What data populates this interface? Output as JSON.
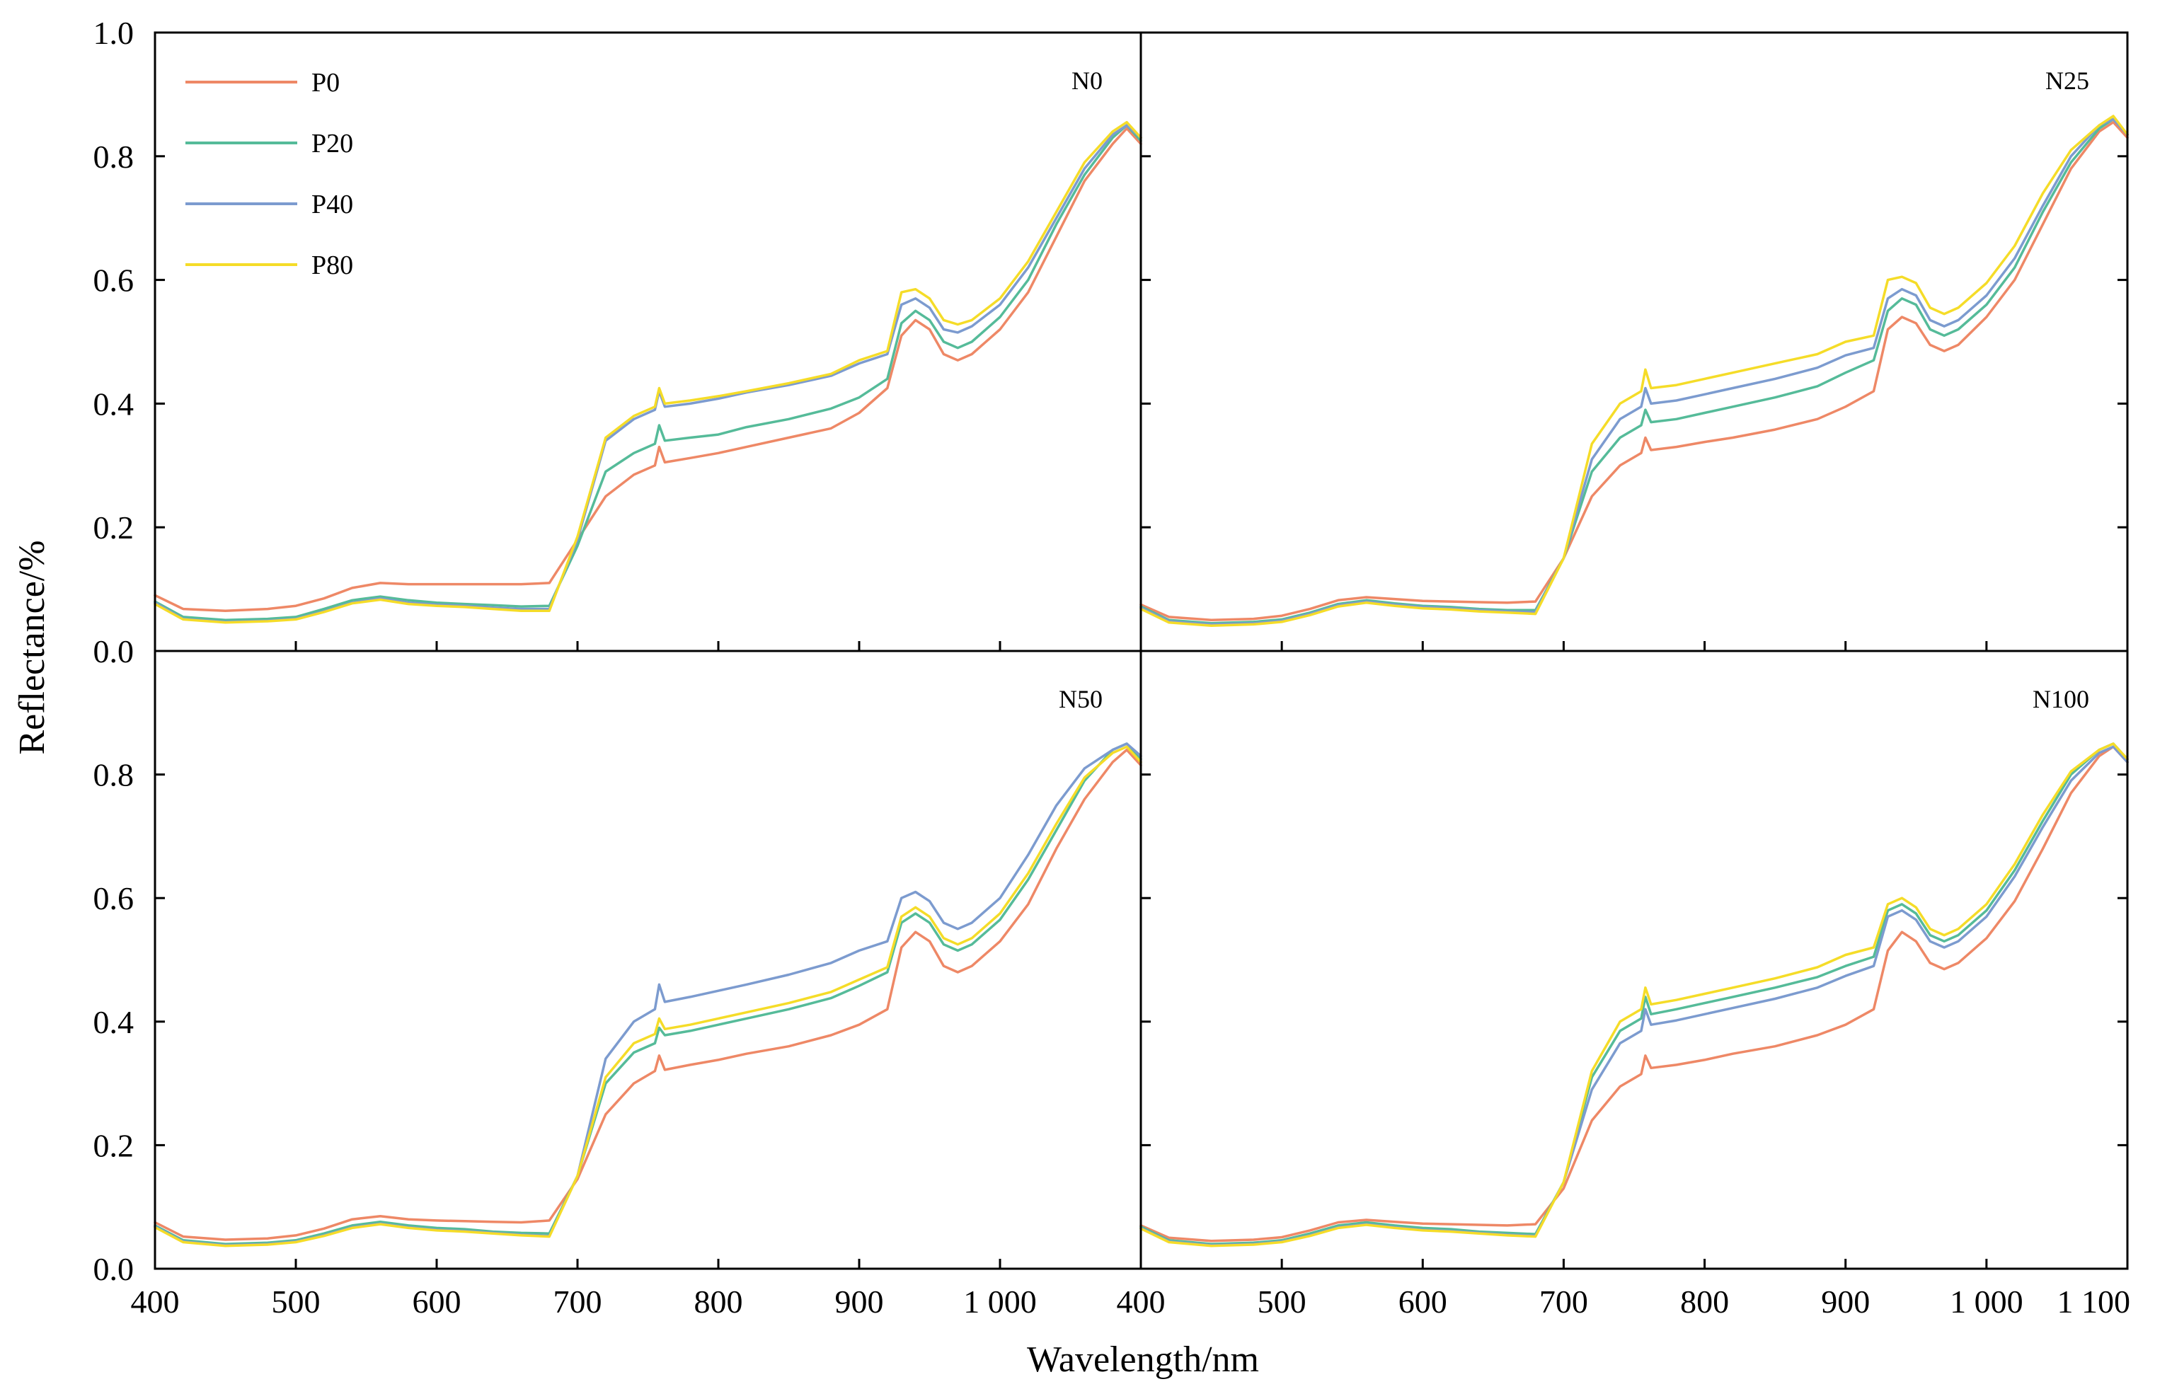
{
  "chart_data": {
    "type": "line",
    "layout": "2x2 panels, shared axes",
    "xlabel": "Wavelength/nm",
    "ylabel": "Reflectance/%",
    "xlim": [
      400,
      1100
    ],
    "ylim": [
      0.0,
      1.0
    ],
    "x_ticks": [
      400,
      500,
      600,
      700,
      800,
      900,
      1000,
      1100
    ],
    "x_tick_labels_left": [
      "400",
      "500",
      "600",
      "700",
      "800",
      "900",
      "1 000",
      ""
    ],
    "x_tick_labels_right": [
      "400",
      "500",
      "600",
      "700",
      "800",
      "900",
      "1 000",
      "1 100"
    ],
    "y_ticks": [
      0.0,
      0.2,
      0.4,
      0.6,
      0.8,
      1.0
    ],
    "y_tick_labels_top": [
      "0.0",
      "0.2",
      "0.4",
      "0.6",
      "0.8",
      "1.0"
    ],
    "y_tick_labels_bottom": [
      "0.0",
      "0.2",
      "0.4",
      "0.6",
      "0.8",
      ""
    ],
    "grid": false,
    "legend": {
      "placement": "top-left of first panel",
      "entries": [
        {
          "name": "P0",
          "color": "#EE8866"
        },
        {
          "name": "P20",
          "color": "#55BB99"
        },
        {
          "name": "P40",
          "color": "#7C9BCF"
        },
        {
          "name": "P80",
          "color": "#F5DC28"
        }
      ]
    },
    "x": [
      400,
      420,
      450,
      480,
      500,
      520,
      540,
      560,
      580,
      600,
      620,
      640,
      660,
      680,
      700,
      720,
      740,
      755,
      758,
      762,
      780,
      800,
      820,
      850,
      880,
      900,
      920,
      930,
      940,
      950,
      960,
      970,
      980,
      1000,
      1020,
      1040,
      1060,
      1080,
      1090,
      1100
    ],
    "panels": [
      {
        "label": "N0",
        "series": [
          {
            "name": "P0",
            "values": [
              0.09,
              0.068,
              0.065,
              0.068,
              0.073,
              0.085,
              0.102,
              0.11,
              0.108,
              0.108,
              0.108,
              0.108,
              0.108,
              0.11,
              0.18,
              0.25,
              0.285,
              0.3,
              0.33,
              0.305,
              0.312,
              0.32,
              0.33,
              0.345,
              0.36,
              0.385,
              0.425,
              0.51,
              0.535,
              0.52,
              0.48,
              0.47,
              0.48,
              0.52,
              0.58,
              0.67,
              0.76,
              0.82,
              0.845,
              0.82
            ]
          },
          {
            "name": "P20",
            "values": [
              0.08,
              0.055,
              0.05,
              0.052,
              0.055,
              0.068,
              0.082,
              0.088,
              0.082,
              0.078,
              0.076,
              0.074,
              0.072,
              0.073,
              0.17,
              0.29,
              0.32,
              0.335,
              0.365,
              0.34,
              0.345,
              0.35,
              0.362,
              0.375,
              0.392,
              0.41,
              0.44,
              0.53,
              0.55,
              0.535,
              0.5,
              0.49,
              0.5,
              0.54,
              0.6,
              0.69,
              0.77,
              0.83,
              0.85,
              0.825
            ]
          },
          {
            "name": "P40",
            "values": [
              0.078,
              0.052,
              0.047,
              0.049,
              0.052,
              0.064,
              0.078,
              0.085,
              0.078,
              0.075,
              0.073,
              0.07,
              0.068,
              0.068,
              0.18,
              0.34,
              0.375,
              0.39,
              0.42,
              0.395,
              0.4,
              0.408,
              0.418,
              0.43,
              0.445,
              0.465,
              0.48,
              0.56,
              0.57,
              0.555,
              0.52,
              0.515,
              0.525,
              0.56,
              0.62,
              0.7,
              0.78,
              0.835,
              0.85,
              0.83
            ]
          },
          {
            "name": "P80",
            "values": [
              0.076,
              0.051,
              0.046,
              0.048,
              0.051,
              0.063,
              0.077,
              0.083,
              0.076,
              0.073,
              0.071,
              0.068,
              0.065,
              0.065,
              0.185,
              0.345,
              0.38,
              0.395,
              0.425,
              0.4,
              0.405,
              0.412,
              0.42,
              0.433,
              0.448,
              0.47,
              0.485,
              0.58,
              0.585,
              0.57,
              0.535,
              0.528,
              0.535,
              0.57,
              0.63,
              0.71,
              0.79,
              0.84,
              0.855,
              0.83
            ]
          }
        ]
      },
      {
        "label": "N25",
        "series": [
          {
            "name": "P0",
            "values": [
              0.075,
              0.055,
              0.05,
              0.052,
              0.057,
              0.068,
              0.082,
              0.087,
              0.084,
              0.081,
              0.08,
              0.079,
              0.078,
              0.08,
              0.15,
              0.25,
              0.3,
              0.32,
              0.345,
              0.325,
              0.33,
              0.338,
              0.345,
              0.358,
              0.375,
              0.395,
              0.42,
              0.52,
              0.54,
              0.53,
              0.495,
              0.485,
              0.495,
              0.54,
              0.6,
              0.69,
              0.78,
              0.84,
              0.855,
              0.83
            ]
          },
          {
            "name": "P20",
            "values": [
              0.072,
              0.05,
              0.045,
              0.047,
              0.051,
              0.062,
              0.076,
              0.082,
              0.077,
              0.073,
              0.071,
              0.068,
              0.066,
              0.066,
              0.15,
              0.29,
              0.345,
              0.365,
              0.39,
              0.37,
              0.375,
              0.385,
              0.395,
              0.41,
              0.428,
              0.45,
              0.47,
              0.55,
              0.57,
              0.56,
              0.52,
              0.51,
              0.52,
              0.56,
              0.62,
              0.71,
              0.79,
              0.845,
              0.86,
              0.835
            ]
          },
          {
            "name": "P40",
            "values": [
              0.07,
              0.048,
              0.043,
              0.045,
              0.049,
              0.06,
              0.074,
              0.08,
              0.075,
              0.071,
              0.069,
              0.066,
              0.064,
              0.063,
              0.15,
              0.31,
              0.375,
              0.395,
              0.425,
              0.4,
              0.405,
              0.415,
              0.425,
              0.44,
              0.458,
              0.478,
              0.49,
              0.57,
              0.585,
              0.575,
              0.535,
              0.525,
              0.535,
              0.575,
              0.635,
              0.72,
              0.8,
              0.85,
              0.86,
              0.835
            ]
          },
          {
            "name": "P80",
            "values": [
              0.068,
              0.046,
              0.041,
              0.043,
              0.047,
              0.058,
              0.072,
              0.078,
              0.073,
              0.069,
              0.067,
              0.064,
              0.062,
              0.06,
              0.15,
              0.335,
              0.4,
              0.42,
              0.455,
              0.425,
              0.43,
              0.44,
              0.45,
              0.465,
              0.48,
              0.5,
              0.51,
              0.6,
              0.605,
              0.595,
              0.555,
              0.545,
              0.555,
              0.595,
              0.655,
              0.74,
              0.81,
              0.85,
              0.865,
              0.835
            ]
          }
        ]
      },
      {
        "label": "N50",
        "series": [
          {
            "name": "P0",
            "values": [
              0.075,
              0.052,
              0.047,
              0.049,
              0.054,
              0.065,
              0.08,
              0.085,
              0.08,
              0.078,
              0.077,
              0.076,
              0.075,
              0.078,
              0.145,
              0.25,
              0.3,
              0.32,
              0.345,
              0.322,
              0.33,
              0.338,
              0.348,
              0.36,
              0.378,
              0.395,
              0.42,
              0.52,
              0.545,
              0.53,
              0.49,
              0.48,
              0.49,
              0.53,
              0.59,
              0.68,
              0.76,
              0.82,
              0.84,
              0.815
            ]
          },
          {
            "name": "P20",
            "values": [
              0.07,
              0.046,
              0.04,
              0.042,
              0.046,
              0.057,
              0.07,
              0.076,
              0.07,
              0.066,
              0.064,
              0.06,
              0.058,
              0.057,
              0.15,
              0.3,
              0.35,
              0.365,
              0.39,
              0.378,
              0.385,
              0.395,
              0.405,
              0.42,
              0.438,
              0.458,
              0.48,
              0.56,
              0.575,
              0.56,
              0.525,
              0.515,
              0.525,
              0.565,
              0.63,
              0.71,
              0.79,
              0.84,
              0.85,
              0.825
            ]
          },
          {
            "name": "P40",
            "values": [
              0.068,
              0.044,
              0.038,
              0.04,
              0.044,
              0.054,
              0.067,
              0.073,
              0.067,
              0.063,
              0.061,
              0.058,
              0.055,
              0.053,
              0.15,
              0.34,
              0.4,
              0.42,
              0.46,
              0.432,
              0.44,
              0.45,
              0.46,
              0.476,
              0.495,
              0.515,
              0.53,
              0.6,
              0.61,
              0.595,
              0.56,
              0.55,
              0.56,
              0.6,
              0.67,
              0.75,
              0.81,
              0.84,
              0.85,
              0.83
            ]
          },
          {
            "name": "P80",
            "values": [
              0.067,
              0.043,
              0.037,
              0.039,
              0.043,
              0.053,
              0.066,
              0.072,
              0.066,
              0.062,
              0.06,
              0.057,
              0.054,
              0.052,
              0.15,
              0.31,
              0.365,
              0.38,
              0.405,
              0.388,
              0.395,
              0.405,
              0.415,
              0.43,
              0.448,
              0.468,
              0.488,
              0.57,
              0.585,
              0.57,
              0.535,
              0.525,
              0.535,
              0.575,
              0.64,
              0.72,
              0.795,
              0.835,
              0.845,
              0.82
            ]
          }
        ]
      },
      {
        "label": "N100",
        "series": [
          {
            "name": "P0",
            "values": [
              0.07,
              0.05,
              0.045,
              0.047,
              0.051,
              0.062,
              0.075,
              0.079,
              0.076,
              0.073,
              0.072,
              0.071,
              0.07,
              0.072,
              0.13,
              0.24,
              0.295,
              0.315,
              0.345,
              0.325,
              0.33,
              0.338,
              0.348,
              0.36,
              0.378,
              0.395,
              0.42,
              0.515,
              0.545,
              0.53,
              0.495,
              0.485,
              0.495,
              0.535,
              0.595,
              0.68,
              0.77,
              0.83,
              0.845,
              0.82
            ]
          },
          {
            "name": "P20",
            "values": [
              0.068,
              0.046,
              0.04,
              0.042,
              0.046,
              0.057,
              0.07,
              0.075,
              0.07,
              0.066,
              0.064,
              0.06,
              0.058,
              0.056,
              0.14,
              0.31,
              0.385,
              0.405,
              0.44,
              0.412,
              0.42,
              0.43,
              0.44,
              0.455,
              0.472,
              0.49,
              0.505,
              0.58,
              0.59,
              0.575,
              0.54,
              0.53,
              0.54,
              0.58,
              0.645,
              0.725,
              0.8,
              0.84,
              0.85,
              0.825
            ]
          },
          {
            "name": "P40",
            "values": [
              0.066,
              0.044,
              0.038,
              0.04,
              0.044,
              0.054,
              0.067,
              0.072,
              0.067,
              0.063,
              0.061,
              0.058,
              0.055,
              0.053,
              0.14,
              0.29,
              0.365,
              0.385,
              0.42,
              0.395,
              0.402,
              0.412,
              0.422,
              0.437,
              0.455,
              0.474,
              0.49,
              0.57,
              0.58,
              0.565,
              0.53,
              0.52,
              0.53,
              0.57,
              0.635,
              0.715,
              0.79,
              0.835,
              0.845,
              0.82
            ]
          },
          {
            "name": "P80",
            "values": [
              0.065,
              0.043,
              0.037,
              0.039,
              0.043,
              0.053,
              0.066,
              0.071,
              0.066,
              0.062,
              0.06,
              0.057,
              0.054,
              0.052,
              0.14,
              0.32,
              0.4,
              0.42,
              0.455,
              0.428,
              0.435,
              0.445,
              0.455,
              0.47,
              0.488,
              0.508,
              0.52,
              0.59,
              0.6,
              0.585,
              0.55,
              0.54,
              0.55,
              0.59,
              0.655,
              0.735,
              0.805,
              0.84,
              0.85,
              0.825
            ]
          }
        ]
      }
    ]
  }
}
